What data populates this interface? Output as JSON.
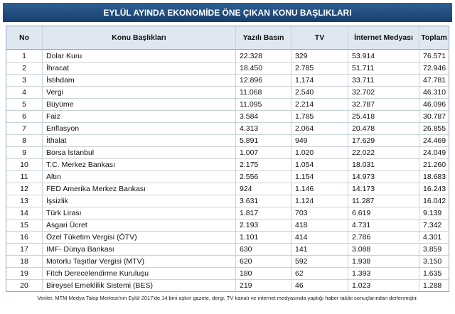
{
  "header": {
    "title": "EYLÜL AYINDA EKONOMİDE ÖNE ÇIKAN KONU BAŞLIKLARI"
  },
  "table": {
    "columns": [
      "No",
      "Konu Başlıkları",
      "Yazılı Basın",
      "TV",
      "İnternet Medyası",
      "Toplam"
    ],
    "rows": [
      [
        "1",
        "Dolar Kuru",
        "22.328",
        "329",
        "53.914",
        "76.571"
      ],
      [
        "2",
        "İhracat",
        "18.450",
        "2.785",
        "51.711",
        "72.946"
      ],
      [
        "3",
        "İstihdam",
        "12.896",
        "1.174",
        "33.711",
        "47.781"
      ],
      [
        "4",
        "Vergi",
        "11.068",
        "2.540",
        "32.702",
        "46.310"
      ],
      [
        "5",
        "Büyüme",
        "11.095",
        "2.214",
        "32.787",
        "46.096"
      ],
      [
        "6",
        "Faiz",
        "3.584",
        "1.785",
        "25.418",
        "30.787"
      ],
      [
        "7",
        "Enflasyon",
        "4.313",
        "2.064",
        "20.478",
        "26.855"
      ],
      [
        "8",
        "İthalat",
        "5.891",
        "949",
        "17.629",
        "24.469"
      ],
      [
        "9",
        "Borsa İstanbul",
        "1.007",
        "1.020",
        "22.022",
        "24.049"
      ],
      [
        "10",
        "T.C. Merkez Bankası",
        "2.175",
        "1.054",
        "18.031",
        "21.260"
      ],
      [
        "11",
        "Altın",
        "2.556",
        "1.154",
        "14.973",
        "18.683"
      ],
      [
        "12",
        "FED Amerika Merkez Bankası",
        "924",
        "1.146",
        "14.173",
        "16.243"
      ],
      [
        "13",
        "İşsizlik",
        "3.631",
        "1.124",
        "11.287",
        "16.042"
      ],
      [
        "14",
        "Türk Lirası",
        "1.817",
        "703",
        "6.619",
        "9.139"
      ],
      [
        "15",
        "Asgari Ücret",
        "2.193",
        "418",
        "4.731",
        "7.342"
      ],
      [
        "16",
        "Özel Tüketim Vergisi (ÖTV)",
        "1.101",
        "414",
        "2.786",
        "4.301"
      ],
      [
        "17",
        "IMF- Dünya Bankası",
        "630",
        "141",
        "3.088",
        "3.859"
      ],
      [
        "18",
        "Motorlu Taşıtlar Vergisi (MTV)",
        "620",
        "592",
        "1.938",
        "3.150"
      ],
      [
        "19",
        "Fitch Derecelendirme Kuruluşu",
        "180",
        "62",
        "1.393",
        "1.635"
      ],
      [
        "20",
        "Bireysel Emeklilik Sistemi (BES)",
        "219",
        "46",
        "1.023",
        "1.288"
      ]
    ]
  },
  "footer": {
    "note": "Veriler, MTM Medya Takip Merkezi'nin Eylül 2017'de 14 bini aşkın gazete, dergi, TV kanalı ve internet medyasında yaptığı haber takibi sonuçlarından derlenmiştir."
  }
}
